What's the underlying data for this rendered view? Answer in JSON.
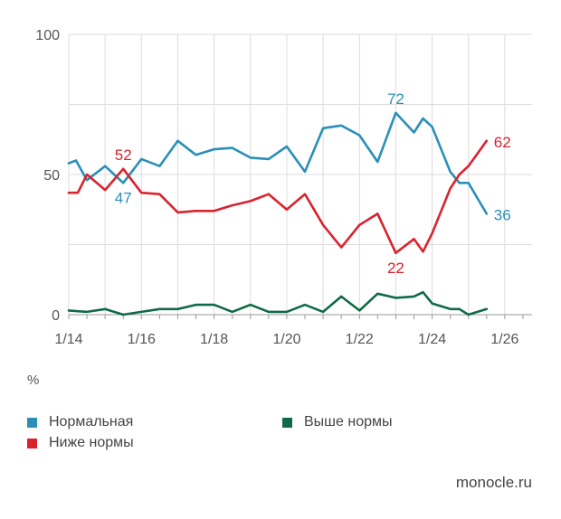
{
  "chart_data": {
    "type": "line",
    "title": "",
    "xlabel": "",
    "ylabel": "%",
    "ylim": [
      0,
      100
    ],
    "yticks": [
      0,
      50,
      100
    ],
    "xlim": [
      0,
      25.5
    ],
    "xticks": [
      {
        "label": "1/14",
        "x": 0
      },
      {
        "label": "1/16",
        "x": 4
      },
      {
        "label": "1/18",
        "x": 8
      },
      {
        "label": "1/20",
        "x": 12
      },
      {
        "label": "1/22",
        "x": 16
      },
      {
        "label": "1/24",
        "x": 20
      },
      {
        "label": "1/26",
        "x": 24
      }
    ],
    "grid": true,
    "series": [
      {
        "name": "Нормальная",
        "color": "#2b8fb8",
        "points": [
          [
            0,
            54
          ],
          [
            0.4,
            55
          ],
          [
            1,
            48
          ],
          [
            2,
            53
          ],
          [
            3,
            47
          ],
          [
            4,
            55.5
          ],
          [
            5,
            53
          ],
          [
            6,
            62
          ],
          [
            7,
            57
          ],
          [
            8,
            59
          ],
          [
            9,
            59.5
          ],
          [
            10,
            56
          ],
          [
            11,
            55.5
          ],
          [
            12,
            60
          ],
          [
            13,
            51
          ],
          [
            14,
            66.5
          ],
          [
            15,
            67.5
          ],
          [
            16,
            64
          ],
          [
            17,
            54.5
          ],
          [
            18,
            72
          ],
          [
            19,
            65
          ],
          [
            19.5,
            70
          ],
          [
            20,
            67
          ],
          [
            21,
            51
          ],
          [
            21.5,
            47
          ],
          [
            22,
            47
          ],
          [
            23,
            36
          ]
        ],
        "labels": [
          {
            "x": 3,
            "y": 47,
            "text": "47",
            "pos": "below"
          },
          {
            "x": 18,
            "y": 72,
            "text": "72",
            "pos": "above"
          },
          {
            "x": 23,
            "y": 36,
            "text": "36",
            "pos": "right"
          }
        ]
      },
      {
        "name": "Ниже нормы",
        "color": "#d9232e",
        "points": [
          [
            0,
            43.5
          ],
          [
            0.5,
            43.5
          ],
          [
            1,
            50
          ],
          [
            2,
            44.5
          ],
          [
            3,
            52
          ],
          [
            4,
            43.5
          ],
          [
            5,
            43
          ],
          [
            6,
            36.5
          ],
          [
            7,
            37
          ],
          [
            8,
            37
          ],
          [
            9,
            39
          ],
          [
            10,
            40.5
          ],
          [
            11,
            43
          ],
          [
            12,
            37.5
          ],
          [
            13,
            43
          ],
          [
            14,
            32
          ],
          [
            15,
            24
          ],
          [
            16,
            32
          ],
          [
            17,
            36
          ],
          [
            18,
            22
          ],
          [
            19,
            27
          ],
          [
            19.5,
            22.5
          ],
          [
            20,
            29
          ],
          [
            21,
            45
          ],
          [
            21.5,
            50
          ],
          [
            22,
            53
          ],
          [
            23,
            62
          ]
        ],
        "labels": [
          {
            "x": 3,
            "y": 52,
            "text": "52",
            "pos": "above"
          },
          {
            "x": 18,
            "y": 22,
            "text": "22",
            "pos": "below"
          },
          {
            "x": 23,
            "y": 62,
            "text": "62",
            "pos": "right"
          }
        ]
      },
      {
        "name": "Выше нормы",
        "color": "#0f6b45",
        "points": [
          [
            0,
            1.5
          ],
          [
            1,
            1
          ],
          [
            2,
            2
          ],
          [
            3,
            0
          ],
          [
            4,
            1
          ],
          [
            5,
            2
          ],
          [
            6,
            2
          ],
          [
            7,
            3.5
          ],
          [
            8,
            3.5
          ],
          [
            9,
            1
          ],
          [
            10,
            3.5
          ],
          [
            11,
            1
          ],
          [
            12,
            1
          ],
          [
            13,
            3.5
          ],
          [
            14,
            1
          ],
          [
            15,
            6.5
          ],
          [
            16,
            1.5
          ],
          [
            17,
            7.5
          ],
          [
            18,
            6
          ],
          [
            19,
            6.5
          ],
          [
            19.5,
            8
          ],
          [
            20,
            4
          ],
          [
            21,
            2
          ],
          [
            21.5,
            2
          ],
          [
            22,
            0
          ],
          [
            23,
            2
          ]
        ],
        "labels": []
      }
    ]
  },
  "legend": [
    {
      "name": "Нормальная",
      "color": "#2b8fb8"
    },
    {
      "name": "Выше нормы",
      "color": "#0f6b45"
    },
    {
      "name": "Ниже нормы",
      "color": "#d9232e"
    }
  ],
  "unit_label": "%",
  "source": "monocle.ru"
}
